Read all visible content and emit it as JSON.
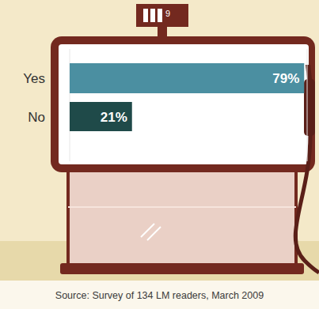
{
  "chart_data": {
    "type": "bar",
    "orientation": "horizontal",
    "categories": [
      "Yes",
      "No"
    ],
    "values": [
      79,
      21
    ],
    "value_labels": [
      "79%",
      "21%"
    ],
    "colors": [
      "#4b8fa1",
      "#1f4a49"
    ],
    "xlim": [
      0,
      80
    ],
    "data_labels": true,
    "tick_labels": "y",
    "grid": false,
    "annotations": [
      "9"
    ],
    "source": "Source: Survey of 134 LM readers, March 2009"
  }
}
